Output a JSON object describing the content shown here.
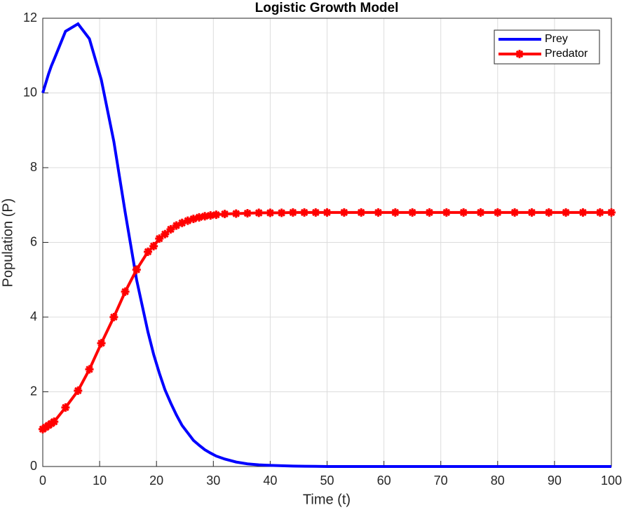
{
  "chart_data": {
    "type": "line",
    "title": "Logistic Growth Model",
    "x_label": "Time (t)",
    "y_label": "Population (P)",
    "x": [
      0,
      0.5,
      1,
      1.5,
      2,
      4,
      6.2,
      8.2,
      10.3,
      12.5,
      14.5,
      16.5,
      18.5,
      19.5,
      20.5,
      21.5,
      22.5,
      23.5,
      24.5,
      25.5,
      26.5,
      27.5,
      28.5,
      29.5,
      30.5,
      32,
      34,
      36,
      38,
      40,
      42,
      44,
      46,
      48,
      50,
      53,
      56,
      59,
      62,
      65,
      68,
      71,
      74,
      77,
      80,
      83,
      86,
      89,
      92,
      95,
      98,
      100
    ],
    "series": [
      {
        "name": "Prey",
        "color": "#0000ff",
        "marker": "none",
        "values": [
          10,
          10.25,
          10.5,
          10.72,
          10.9,
          11.65,
          11.85,
          11.45,
          10.35,
          8.7,
          6.8,
          5.0,
          3.6,
          3.0,
          2.5,
          2.05,
          1.7,
          1.38,
          1.1,
          0.9,
          0.7,
          0.57,
          0.45,
          0.36,
          0.28,
          0.2,
          0.12,
          0.07,
          0.045,
          0.03,
          0.02,
          0.012,
          0.008,
          0.005,
          0,
          0,
          0,
          0,
          0,
          0,
          0,
          0,
          0,
          0,
          0,
          0,
          0,
          0,
          0,
          0,
          0,
          0
        ]
      },
      {
        "name": "Predator",
        "color": "#ff0000",
        "marker": "asterisk",
        "values": [
          1.0,
          1.05,
          1.1,
          1.15,
          1.2,
          1.58,
          2.03,
          2.6,
          3.3,
          4.0,
          4.68,
          5.27,
          5.75,
          5.9,
          6.1,
          6.22,
          6.35,
          6.45,
          6.52,
          6.58,
          6.63,
          6.67,
          6.7,
          6.72,
          6.74,
          6.76,
          6.77,
          6.78,
          6.79,
          6.79,
          6.79,
          6.8,
          6.8,
          6.8,
          6.8,
          6.8,
          6.8,
          6.8,
          6.8,
          6.8,
          6.8,
          6.8,
          6.8,
          6.8,
          6.8,
          6.8,
          6.8,
          6.8,
          6.8,
          6.8,
          6.8,
          6.8
        ]
      }
    ],
    "xlim": [
      0,
      100
    ],
    "xticks": [
      0,
      10,
      20,
      30,
      40,
      50,
      60,
      70,
      80,
      90,
      100
    ],
    "ylim": [
      0,
      12
    ],
    "yticks": [
      0,
      2,
      4,
      6,
      8,
      10,
      12
    ],
    "grid": true,
    "legend": "northeast"
  }
}
